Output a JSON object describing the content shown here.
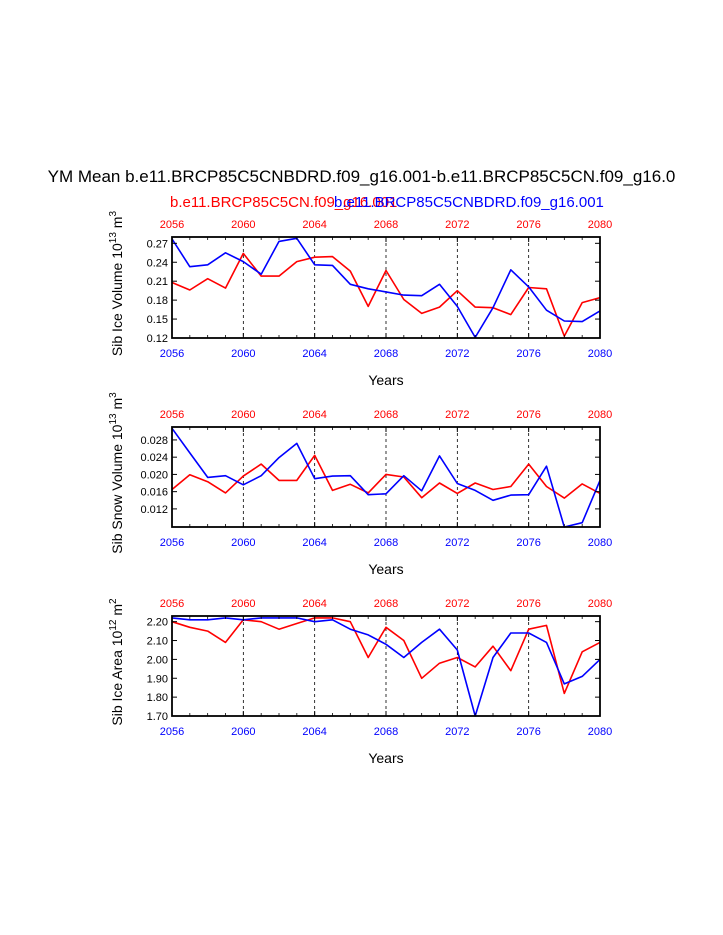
{
  "title": "YM Mean b.e11.BRCP85C5CNBDRD.f09_g16.001-b.e11.BRCP85C5CN.f09_g16.0",
  "subtitle_red": "b.e11.BRCP85C5CN.f09_g16.001",
  "subtitle_blue": "b.e11.BRCP85C5CNBDRD.f09_g16.001",
  "colors": {
    "red_series": "#ff0000",
    "blue_series": "#0000ff",
    "axis": "#000000"
  },
  "chart_data": [
    {
      "type": "line",
      "ylabel": "Sib Ice Volume 10^13 m^3",
      "xlabel": "Years",
      "xlim": [
        2056,
        2080
      ],
      "ylim": [
        0.12,
        0.28
      ],
      "xticks": [
        2056,
        2060,
        2064,
        2068,
        2072,
        2076,
        2080
      ],
      "yticks": [
        0.12,
        0.15,
        0.18,
        0.21,
        0.24,
        0.27
      ],
      "ytick_labels": [
        "0.12",
        "0.15",
        "0.18",
        "0.21",
        "0.24",
        "0.27"
      ],
      "x": [
        2056,
        2057,
        2058,
        2059,
        2060,
        2061,
        2062,
        2063,
        2064,
        2065,
        2066,
        2067,
        2068,
        2069,
        2070,
        2071,
        2072,
        2073,
        2074,
        2075,
        2076,
        2077,
        2078,
        2079,
        2080
      ],
      "series": [
        {
          "name": "b.e11.BRCP85C5CN.f09_g16.001",
          "color": "red",
          "values": [
            0.208,
            0.196,
            0.214,
            0.199,
            0.254,
            0.218,
            0.218,
            0.241,
            0.248,
            0.249,
            0.226,
            0.17,
            0.227,
            0.181,
            0.159,
            0.169,
            0.195,
            0.169,
            0.168,
            0.157,
            0.2,
            0.198,
            0.123,
            0.176,
            0.184
          ]
        },
        {
          "name": "b.e11.BRCP85C5CNBDRD.f09_g16.001",
          "color": "blue",
          "values": [
            0.277,
            0.233,
            0.236,
            0.255,
            0.241,
            0.221,
            0.273,
            0.278,
            0.236,
            0.235,
            0.205,
            0.198,
            0.193,
            0.188,
            0.187,
            0.205,
            0.17,
            0.121,
            0.168,
            0.228,
            0.201,
            0.164,
            0.147,
            0.146,
            0.163
          ]
        }
      ]
    },
    {
      "type": "line",
      "ylabel": "Sib Snow Volume 10^13 m^3",
      "xlabel": "Years",
      "xlim": [
        2056,
        2080
      ],
      "ylim": [
        0.0078,
        0.031
      ],
      "xticks": [
        2056,
        2060,
        2064,
        2068,
        2072,
        2076,
        2080
      ],
      "yticks": [
        0.012,
        0.016,
        0.02,
        0.024,
        0.028
      ],
      "ytick_labels": [
        "0.012",
        "0.016",
        "0.020",
        "0.024",
        "0.028"
      ],
      "x": [
        2056,
        2057,
        2058,
        2059,
        2060,
        2061,
        2062,
        2063,
        2064,
        2065,
        2066,
        2067,
        2068,
        2069,
        2070,
        2071,
        2072,
        2073,
        2074,
        2075,
        2076,
        2077,
        2078,
        2079,
        2080
      ],
      "series": [
        {
          "name": "b.e11.BRCP85C5CN.f09_g16.001",
          "color": "red",
          "values": [
            0.0165,
            0.0199,
            0.0183,
            0.0157,
            0.0196,
            0.0224,
            0.0186,
            0.0186,
            0.0244,
            0.0163,
            0.0177,
            0.0157,
            0.02,
            0.0194,
            0.0146,
            0.018,
            0.0156,
            0.018,
            0.0165,
            0.0172,
            0.0224,
            0.0172,
            0.0145,
            0.0178,
            0.0156
          ]
        },
        {
          "name": "b.e11.BRCP85C5CNBDRD.f09_g16.001",
          "color": "blue",
          "values": [
            0.0307,
            0.025,
            0.0193,
            0.0197,
            0.0176,
            0.0197,
            0.0239,
            0.0272,
            0.019,
            0.0196,
            0.0197,
            0.0153,
            0.0155,
            0.0197,
            0.0162,
            0.0243,
            0.0179,
            0.0163,
            0.014,
            0.0152,
            0.0153,
            0.0219,
            0.0078,
            0.0088,
            0.0186
          ]
        }
      ]
    },
    {
      "type": "line",
      "ylabel": "Sib Ice Area 10^12 m^2",
      "xlabel": "Years",
      "xlim": [
        2056,
        2080
      ],
      "ylim": [
        1.7,
        2.23
      ],
      "xticks": [
        2056,
        2060,
        2064,
        2068,
        2072,
        2076,
        2080
      ],
      "yticks": [
        1.7,
        1.8,
        1.9,
        2.0,
        2.1,
        2.2
      ],
      "ytick_labels": [
        "1.70",
        "1.80",
        "1.90",
        "2.00",
        "2.10",
        "2.20"
      ],
      "x": [
        2056,
        2057,
        2058,
        2059,
        2060,
        2061,
        2062,
        2063,
        2064,
        2065,
        2066,
        2067,
        2068,
        2069,
        2070,
        2071,
        2072,
        2073,
        2074,
        2075,
        2076,
        2077,
        2078,
        2079,
        2080
      ],
      "series": [
        {
          "name": "b.e11.BRCP85C5CN.f09_g16.001",
          "color": "red",
          "values": [
            2.2,
            2.17,
            2.15,
            2.09,
            2.21,
            2.2,
            2.16,
            2.19,
            2.22,
            2.22,
            2.2,
            2.01,
            2.17,
            2.1,
            1.9,
            1.98,
            2.01,
            1.96,
            2.07,
            1.94,
            2.16,
            2.18,
            1.82,
            2.04,
            2.09
          ]
        },
        {
          "name": "b.e11.BRCP85C5CNBDRD.f09_g16.001",
          "color": "blue",
          "values": [
            2.22,
            2.21,
            2.21,
            2.22,
            2.21,
            2.22,
            2.22,
            2.22,
            2.2,
            2.21,
            2.16,
            2.13,
            2.08,
            2.01,
            2.09,
            2.16,
            2.05,
            1.7,
            2.01,
            2.14,
            2.14,
            2.09,
            1.87,
            1.91,
            2.0
          ]
        }
      ]
    }
  ]
}
